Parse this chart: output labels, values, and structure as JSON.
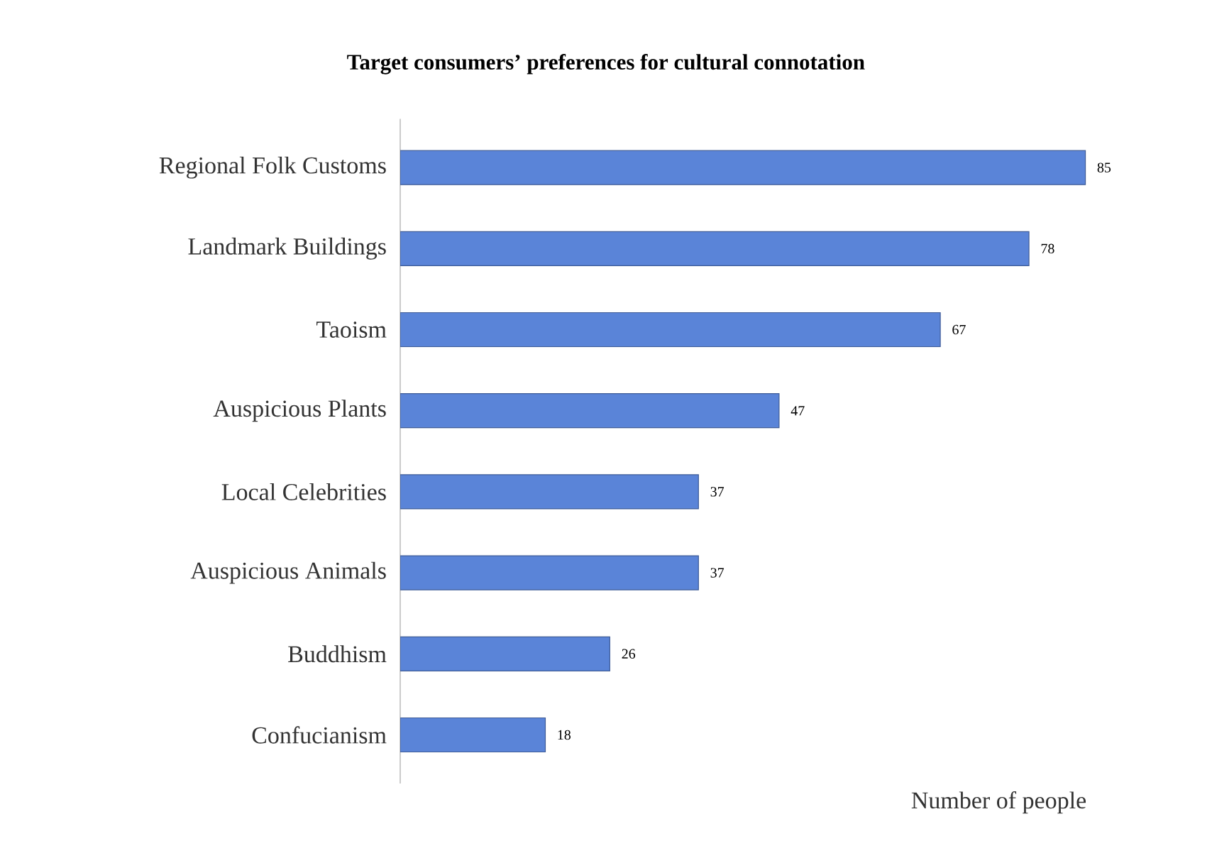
{
  "chart_data": {
    "type": "bar",
    "orientation": "horizontal",
    "title": "Target consumers’ preferences for cultural connotation",
    "xlabel": "Number of people",
    "categories": [
      "Regional Folk Customs",
      "Landmark Buildings",
      "Taoism",
      "Auspicious Plants",
      "Local Celebrities",
      "Auspicious Animals",
      "Buddhism",
      "Confucianism"
    ],
    "values": [
      85,
      78,
      67,
      47,
      37,
      37,
      26,
      18
    ],
    "color": "#5a84d8",
    "data_labels": true
  }
}
